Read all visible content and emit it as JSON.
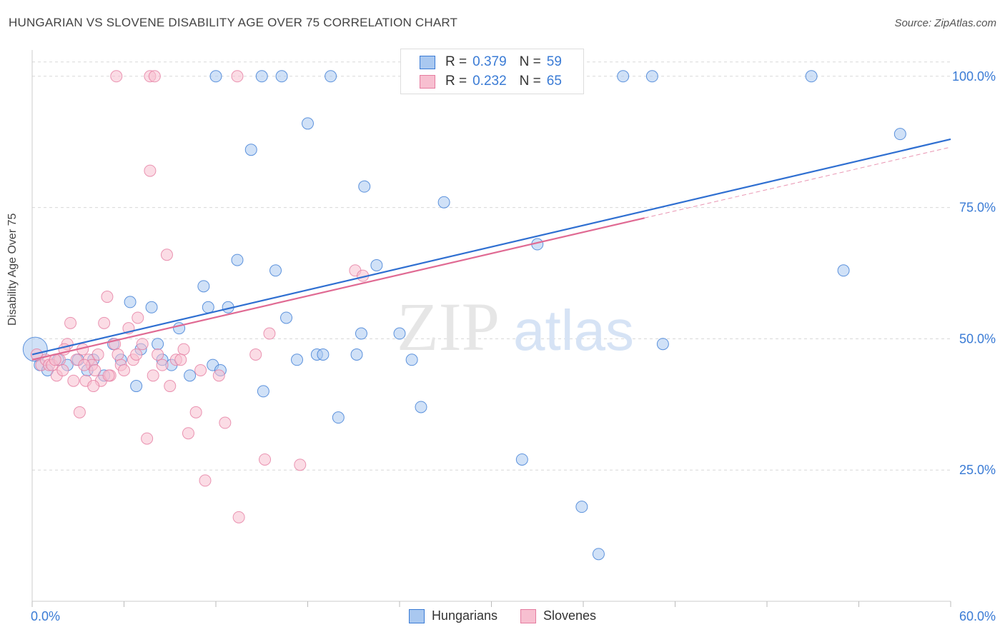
{
  "title": "HUNGARIAN VS SLOVENE DISABILITY AGE OVER 75 CORRELATION CHART",
  "source": "Source: ZipAtlas.com",
  "watermark": {
    "zip": "ZIP",
    "atlas": "atlas"
  },
  "legend_box": {
    "rows": [
      {
        "r_label": "R =",
        "r_value": "0.379",
        "n_label": "N =",
        "n_value": "59"
      },
      {
        "r_label": "R =",
        "r_value": "0.232",
        "n_label": "N =",
        "n_value": "65"
      }
    ]
  },
  "colors": {
    "blue_fill": "#a9c8f0",
    "blue_stroke": "#3a7bd5",
    "blue_line": "#2f6fd1",
    "pink_fill": "#f7bfd0",
    "pink_stroke": "#e57ca0",
    "pink_line": "#e06a93",
    "grid": "#d8d8d8",
    "tick_label": "#3a7bd5"
  },
  "chart_data": {
    "type": "scatter",
    "title": "HUNGARIAN VS SLOVENE DISABILITY AGE OVER 75 CORRELATION CHART",
    "xlabel": "",
    "ylabel": "Disability Age Over 75",
    "xlim": [
      0,
      60
    ],
    "ylim": [
      0,
      105
    ],
    "x_tick_labels": [
      "0.0%",
      "60.0%"
    ],
    "y_ticks": [
      25,
      50,
      75,
      100
    ],
    "y_tick_labels": [
      "25.0%",
      "50.0%",
      "75.0%",
      "100.0%"
    ],
    "grid": "dashed horizontal",
    "legend_placement": "top-center and bottom",
    "series": [
      {
        "name": "Hungarians",
        "r": 0.379,
        "n": 59,
        "trend": {
          "x": [
            0,
            60
          ],
          "y": [
            47.0,
            88.0
          ]
        },
        "points": [
          [
            0.2,
            48
          ],
          [
            0.5,
            45
          ],
          [
            1.0,
            44
          ],
          [
            1.7,
            46
          ],
          [
            2.3,
            45
          ],
          [
            3.0,
            46
          ],
          [
            3.6,
            44
          ],
          [
            4.0,
            46
          ],
          [
            4.7,
            43
          ],
          [
            5.3,
            49
          ],
          [
            5.8,
            46
          ],
          [
            6.4,
            57
          ],
          [
            6.8,
            41
          ],
          [
            7.1,
            48
          ],
          [
            7.8,
            56
          ],
          [
            8.2,
            49
          ],
          [
            8.5,
            46
          ],
          [
            9.1,
            45
          ],
          [
            9.6,
            52
          ],
          [
            10.3,
            43
          ],
          [
            11.2,
            60
          ],
          [
            11.5,
            56
          ],
          [
            11.8,
            45
          ],
          [
            12.3,
            44
          ],
          [
            12.8,
            56
          ],
          [
            13.4,
            65
          ],
          [
            14.3,
            86
          ],
          [
            15.1,
            40
          ],
          [
            15.9,
            63
          ],
          [
            16.6,
            54
          ],
          [
            17.3,
            46
          ],
          [
            18.0,
            91
          ],
          [
            18.6,
            47
          ],
          [
            19.0,
            47
          ],
          [
            20.0,
            35
          ],
          [
            21.2,
            47
          ],
          [
            21.5,
            51
          ],
          [
            21.7,
            79
          ],
          [
            22.5,
            64
          ],
          [
            24.0,
            51
          ],
          [
            24.8,
            46
          ],
          [
            25.4,
            37
          ],
          [
            26.9,
            76
          ],
          [
            32.0,
            27
          ],
          [
            33.0,
            68
          ],
          [
            35.9,
            18
          ],
          [
            37.0,
            9
          ],
          [
            41.2,
            49
          ],
          [
            53.0,
            63
          ],
          [
            56.7,
            89
          ],
          [
            15.0,
            100
          ],
          [
            16.3,
            100
          ],
          [
            38.6,
            100
          ],
          [
            40.5,
            100
          ],
          [
            50.9,
            100
          ],
          [
            28.0,
            100
          ],
          [
            24.5,
            100
          ],
          [
            19.5,
            100
          ],
          [
            12.0,
            100
          ]
        ]
      },
      {
        "name": "Slovenes",
        "r": 0.232,
        "n": 65,
        "trend": {
          "x": [
            0,
            40
          ],
          "y": [
            46.0,
            73.0
          ]
        },
        "points": [
          [
            0.3,
            47
          ],
          [
            0.6,
            45
          ],
          [
            0.9,
            46
          ],
          [
            1.1,
            45
          ],
          [
            1.3,
            45
          ],
          [
            1.6,
            43
          ],
          [
            1.8,
            46
          ],
          [
            2.0,
            44
          ],
          [
            2.3,
            49
          ],
          [
            2.5,
            53
          ],
          [
            2.7,
            42
          ],
          [
            2.9,
            46
          ],
          [
            3.1,
            36
          ],
          [
            3.3,
            48
          ],
          [
            3.5,
            42
          ],
          [
            3.7,
            46
          ],
          [
            3.9,
            45
          ],
          [
            4.1,
            44
          ],
          [
            4.3,
            47
          ],
          [
            4.5,
            42
          ],
          [
            4.7,
            53
          ],
          [
            4.9,
            58
          ],
          [
            5.1,
            43
          ],
          [
            5.4,
            49
          ],
          [
            5.6,
            47
          ],
          [
            5.8,
            45
          ],
          [
            6.0,
            44
          ],
          [
            6.3,
            52
          ],
          [
            6.6,
            46
          ],
          [
            6.9,
            54
          ],
          [
            7.2,
            49
          ],
          [
            7.5,
            31
          ],
          [
            7.7,
            82
          ],
          [
            7.9,
            43
          ],
          [
            8.2,
            47
          ],
          [
            8.5,
            45
          ],
          [
            8.8,
            66
          ],
          [
            9.0,
            41
          ],
          [
            9.4,
            46
          ],
          [
            9.9,
            48
          ],
          [
            10.2,
            32
          ],
          [
            10.7,
            36
          ],
          [
            11.3,
            23
          ],
          [
            12.2,
            43
          ],
          [
            12.6,
            34
          ],
          [
            13.5,
            16
          ],
          [
            14.6,
            47
          ],
          [
            15.2,
            27
          ],
          [
            15.5,
            51
          ],
          [
            17.5,
            26
          ],
          [
            21.1,
            63
          ],
          [
            21.6,
            62
          ],
          [
            5.5,
            100
          ],
          [
            7.7,
            100
          ],
          [
            8.0,
            100
          ],
          [
            13.4,
            100
          ],
          [
            33.0,
            100
          ],
          [
            6.8,
            47
          ],
          [
            3.4,
            45
          ],
          [
            2.1,
            48
          ],
          [
            1.5,
            46
          ],
          [
            4.0,
            41
          ],
          [
            5.0,
            43
          ],
          [
            9.7,
            46
          ],
          [
            11.0,
            44
          ]
        ]
      }
    ]
  },
  "bottom_legend": {
    "items": [
      "Hungarians",
      "Slovenes"
    ]
  }
}
